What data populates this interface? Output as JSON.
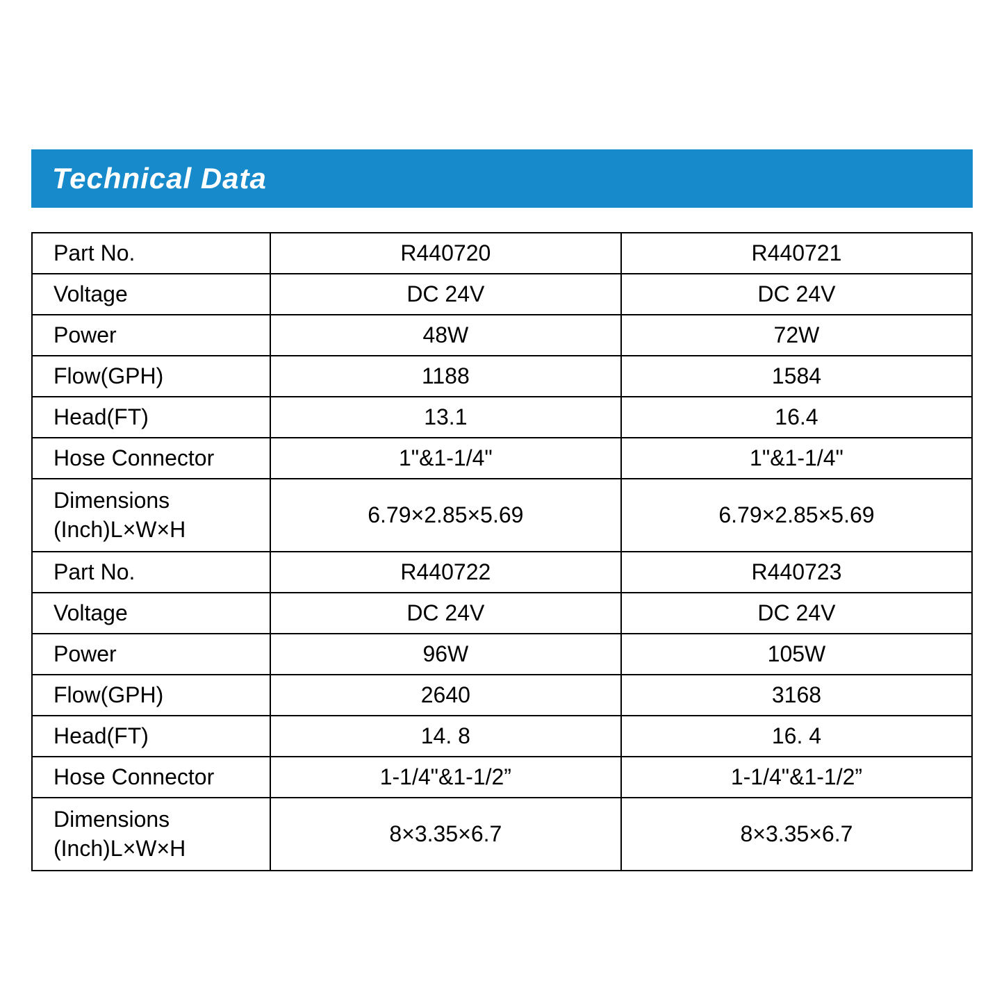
{
  "title": "Technical Data",
  "colors": {
    "title_bg": "#178acb",
    "title_text": "#ffffff",
    "border": "#000000",
    "cell_text": "#000000",
    "background": "#ffffff"
  },
  "table": {
    "type": "table",
    "title_fontsize": 42,
    "cell_fontsize": 32,
    "border_width": 2,
    "column_roles": [
      "label",
      "value",
      "value"
    ],
    "column_widths_pct": [
      24,
      38,
      38
    ],
    "rows": [
      {
        "label": "Part No.",
        "c1": "R440720",
        "c2": "R440721"
      },
      {
        "label": "Voltage",
        "c1": "DC 24V",
        "c2": "DC 24V"
      },
      {
        "label": "Power",
        "c1": "48W",
        "c2": "72W"
      },
      {
        "label": "Flow(GPH)",
        "c1": "1188",
        "c2": "1584"
      },
      {
        "label": "Head(FT)",
        "c1": "13.1",
        "c2": "16.4"
      },
      {
        "label": "Hose Connector",
        "c1": "1\"&1-1/4\"",
        "c2": "1\"&1-1/4\""
      },
      {
        "label": "Dimensions\n(Inch)L×W×H",
        "c1": "6.79×2.85×5.69",
        "c2": "6.79×2.85×5.69",
        "tall": true
      },
      {
        "label": "Part No.",
        "c1": "R440722",
        "c2": "R440723"
      },
      {
        "label": "Voltage",
        "c1": "DC 24V",
        "c2": "DC 24V"
      },
      {
        "label": "Power",
        "c1": "96W",
        "c2": "105W"
      },
      {
        "label": "Flow(GPH)",
        "c1": "2640",
        "c2": "3168"
      },
      {
        "label": "Head(FT)",
        "c1": "14. 8",
        "c2": "16. 4"
      },
      {
        "label": "Hose Connector",
        "c1": "1-1/4\"&1-1/2”",
        "c2": "1-1/4\"&1-1/2”"
      },
      {
        "label": "Dimensions\n(Inch)L×W×H",
        "c1": "8×3.35×6.7",
        "c2": "8×3.35×6.7",
        "tall": true
      }
    ]
  }
}
